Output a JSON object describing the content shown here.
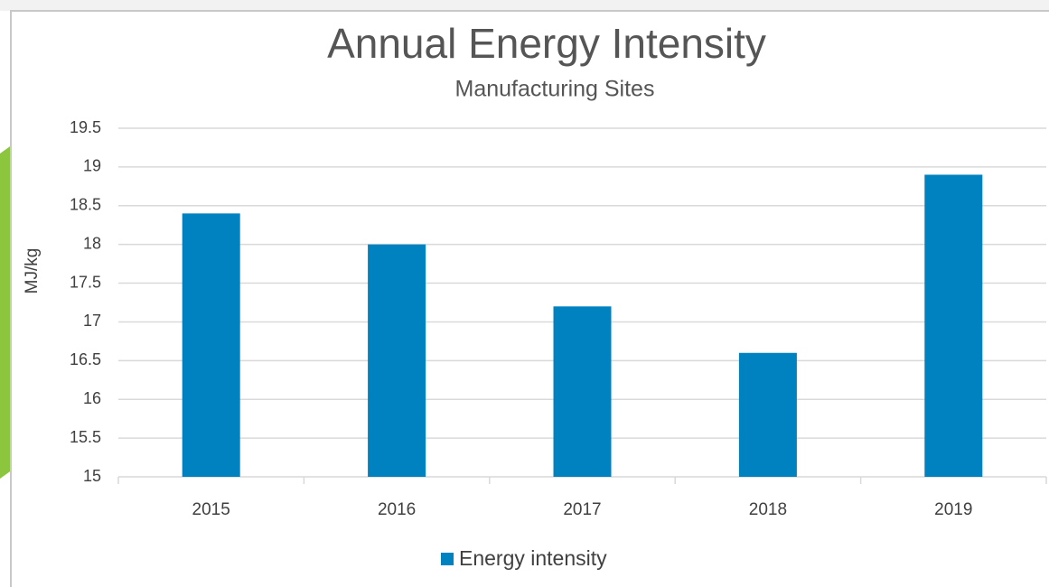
{
  "chart_data": {
    "type": "bar",
    "title": "Annual Energy Intensity",
    "subtitle": "Manufacturing Sites",
    "y_label": "MJ/kg",
    "categories": [
      "2015",
      "2016",
      "2017",
      "2018",
      "2019"
    ],
    "series": [
      {
        "name": "Energy intensity",
        "color": "#0082c0",
        "values": [
          18.4,
          18.0,
          17.2,
          16.6,
          18.9
        ]
      }
    ],
    "ylim": [
      15,
      19.5
    ],
    "yticks": [
      15,
      15.5,
      16,
      16.5,
      17,
      17.5,
      18,
      18.5,
      19,
      19.5
    ],
    "grid": true,
    "legend": "bottom"
  }
}
